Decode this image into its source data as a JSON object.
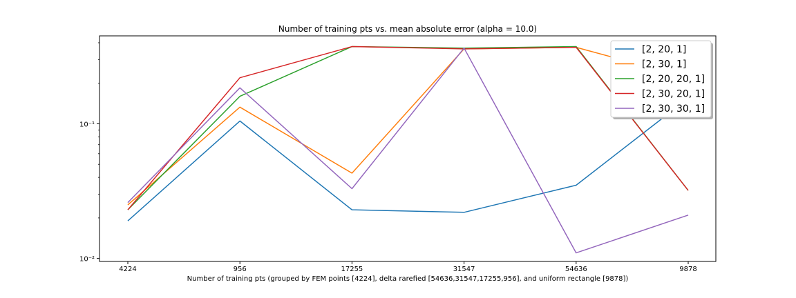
{
  "chart_data": {
    "type": "line",
    "title": "Number of training pts vs. mean absolute error (alpha = 10.0)",
    "xlabel": "Number of training pts (grouped by FEM points [4224], delta rarefied [54636,31547,17255,956], and uniform rectangle [9878])",
    "ylabel": "",
    "yscale": "log",
    "ylim": [
      0.0095,
      0.45
    ],
    "categories": [
      "4224",
      "956",
      "17255",
      "31547",
      "54636",
      "9878"
    ],
    "y_ticks": [
      {
        "value": 0.01,
        "label": "10⁻²"
      },
      {
        "value": 0.1,
        "label": "10⁻¹"
      }
    ],
    "legend_position": "top-right",
    "series": [
      {
        "name": "[2, 20, 1]",
        "color": "#1f77b4",
        "x": [
          0,
          1,
          2,
          3,
          4,
          4.8,
          5
        ],
        "values": [
          0.019,
          0.105,
          0.023,
          0.022,
          0.035,
          0.115,
          0.11
        ]
      },
      {
        "name": "[2, 30, 1]",
        "color": "#ff7f0e",
        "x": [
          0,
          1,
          2,
          3,
          4,
          5
        ],
        "values": [
          0.025,
          0.133,
          0.043,
          0.36,
          0.37,
          0.22
        ]
      },
      {
        "name": "[2, 20, 20, 1]",
        "color": "#2ca02c",
        "x": [
          0,
          1,
          2,
          3,
          4,
          5
        ],
        "values": [
          0.023,
          0.16,
          0.375,
          0.365,
          0.375,
          0.032
        ]
      },
      {
        "name": "[2, 30, 20, 1]",
        "color": "#d62728",
        "x": [
          0,
          1,
          2,
          3,
          4,
          5
        ],
        "values": [
          0.023,
          0.22,
          0.375,
          0.36,
          0.37,
          0.032
        ]
      },
      {
        "name": "[2, 30, 30, 1]",
        "color": "#9467bd",
        "x": [
          0,
          1,
          2,
          3,
          4,
          5
        ],
        "values": [
          0.026,
          0.185,
          0.033,
          0.365,
          0.011,
          0.021
        ]
      }
    ]
  }
}
